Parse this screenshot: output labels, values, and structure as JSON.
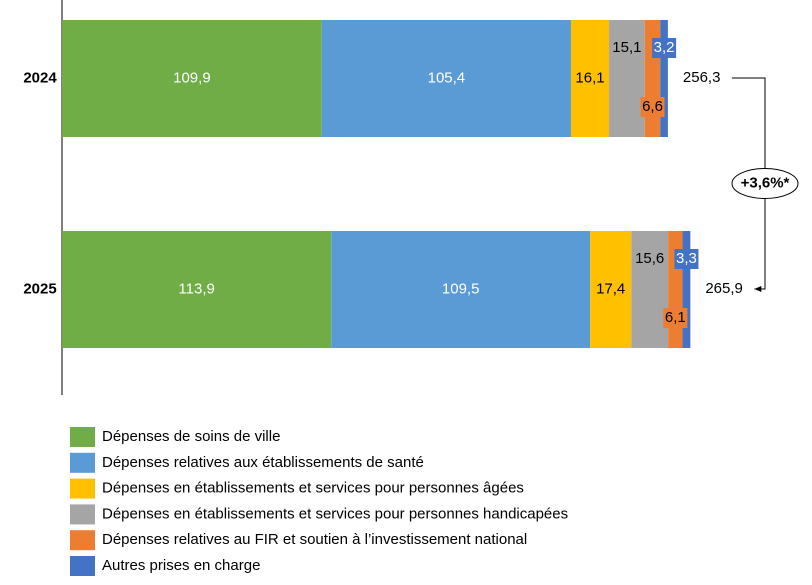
{
  "chart_data": {
    "type": "stacked-bar-horizontal",
    "categories": [
      "2024",
      "2025"
    ],
    "series": [
      {
        "name": "Dépenses de soins de ville",
        "color": "#70ad47",
        "values": [
          109.9,
          113.9
        ],
        "value_labels": [
          "109,9",
          "113,9"
        ]
      },
      {
        "name": "Dépenses relatives aux établissements de santé",
        "color": "#5b9bd5",
        "values": [
          105.4,
          109.5
        ],
        "value_labels": [
          "105,4",
          "109,5"
        ]
      },
      {
        "name": "Dépenses en établissements et services pour personnes âgées",
        "color": "#ffc000",
        "values": [
          16.1,
          17.4
        ],
        "value_labels": [
          "16,1",
          "17,4"
        ]
      },
      {
        "name": "Dépenses en établissements et services pour personnes handicapées",
        "color": "#a5a5a5",
        "values": [
          15.1,
          15.6
        ],
        "value_labels": [
          "15,1",
          "15,6"
        ]
      },
      {
        "name": "Dépenses relatives au FIR et soutien à l’investissement national",
        "color": "#ed7d31",
        "values": [
          6.6,
          6.1
        ],
        "value_labels": [
          "6,6",
          "6,1"
        ]
      },
      {
        "name": "Autres prises en charge",
        "color": "#4472c4",
        "values": [
          3.2,
          3.3
        ],
        "value_labels": [
          "3,2",
          "3,3"
        ]
      }
    ],
    "totals": {
      "values": [
        256.3,
        265.9
      ],
      "value_labels": [
        "256,3",
        "265,9"
      ]
    },
    "annotation": "+3,6%*"
  }
}
